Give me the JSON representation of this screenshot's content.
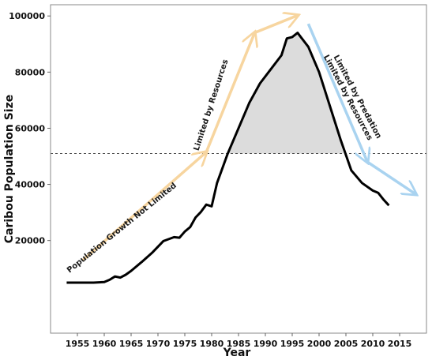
{
  "chart_data": {
    "type": "line",
    "title": "",
    "xlabel": "Year",
    "ylabel": "Caribou Population Size",
    "xlim": [
      1950,
      2020
    ],
    "ylim": [
      -13000,
      104000
    ],
    "x_ticks": [
      1955,
      1960,
      1965,
      1970,
      1975,
      1980,
      1985,
      1990,
      1995,
      2000,
      2005,
      2010,
      2015
    ],
    "y_ticks": [
      20000,
      40000,
      60000,
      80000,
      100000
    ],
    "grid": false,
    "series": [
      {
        "x": [
          1953,
          1955,
          1958,
          1960,
          1961,
          1962,
          1963,
          1964,
          1965,
          1967,
          1969,
          1971,
          1973,
          1974,
          1975,
          1976,
          1977,
          1978,
          1979,
          1980,
          1981,
          1983,
          1985,
          1987,
          1989,
          1991,
          1993,
          1994,
          1995,
          1996,
          1998,
          2000,
          2002,
          2004,
          2006,
          2008,
          2010,
          2011,
          2012,
          2013
        ],
        "y": [
          5000,
          5000,
          5000,
          5200,
          6000,
          7200,
          6800,
          7800,
          9200,
          12400,
          15800,
          19800,
          21200,
          21000,
          23200,
          24800,
          28200,
          30200,
          32800,
          32200,
          40500,
          51000,
          60000,
          69000,
          76000,
          81000,
          86000,
          92000,
          92500,
          94000,
          89000,
          80000,
          68000,
          56000,
          45000,
          40500,
          37800,
          37000,
          34600,
          32500
        ]
      }
    ],
    "threshold": 51000,
    "shaded_region": {
      "from_x": 1983,
      "to_x": 2004.5,
      "above": 51000
    },
    "arrows": [
      {
        "color": "#f7d59f",
        "from": [
          1956,
          13000
        ],
        "to": [
          1979,
          51500
        ]
      },
      {
        "color": "#f7d59f",
        "from": [
          1979,
          51500
        ],
        "to": [
          1988,
          94000
        ]
      },
      {
        "color": "#f7d59f",
        "from": [
          1988,
          94000
        ],
        "to": [
          1996,
          100200
        ]
      },
      {
        "color": "#a9d3f0",
        "from": [
          1998,
          97200
        ],
        "to": [
          2009,
          48000
        ]
      },
      {
        "color": "#a9d3f0",
        "from": [
          2009,
          48000
        ],
        "to": [
          2018,
          36500
        ]
      }
    ],
    "annotations": [
      "Population Growth Not Limited",
      "Limited by Resources",
      "Limited by Predation",
      "Limited by Resources"
    ]
  }
}
